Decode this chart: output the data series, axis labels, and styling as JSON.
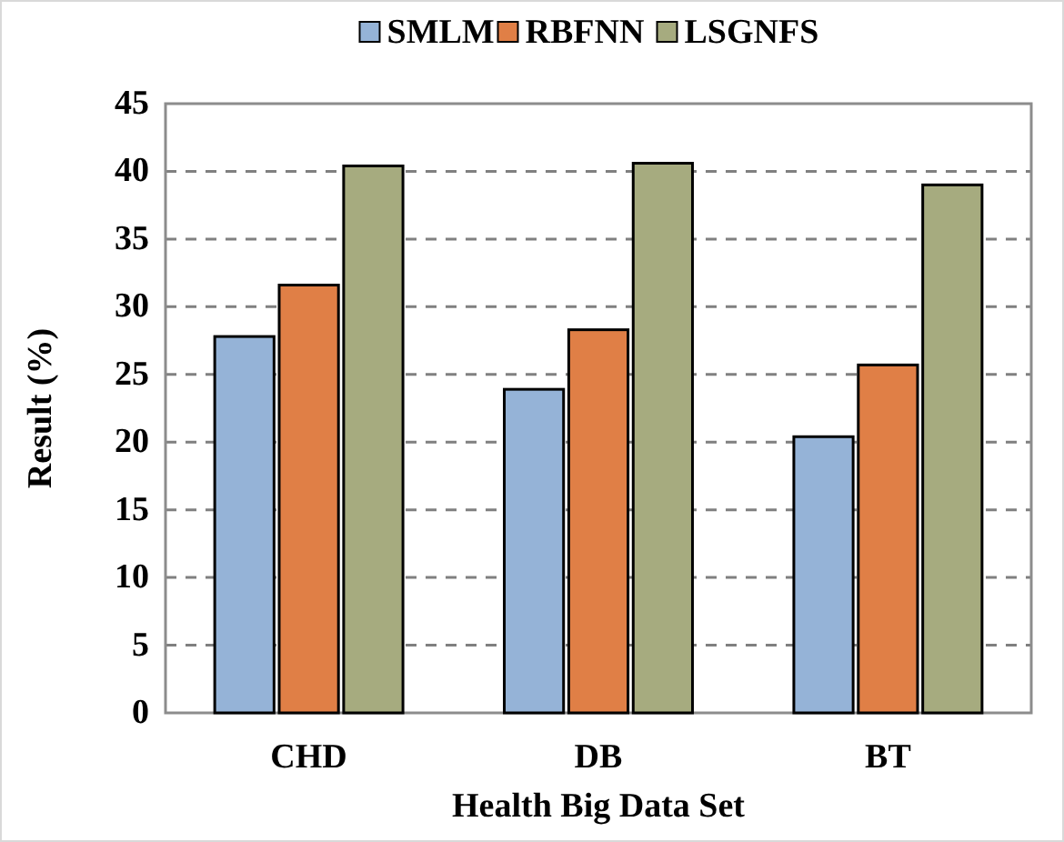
{
  "chart_data": {
    "type": "bar",
    "xlabel": "Health Big Data Set",
    "ylabel": "Result (%)",
    "categories": [
      "CHD",
      "DB",
      "BT"
    ],
    "series": [
      {
        "name": "SMLM",
        "color": "#95b3d7",
        "values": [
          27.8,
          23.9,
          20.4
        ]
      },
      {
        "name": "RBFNN",
        "color": "#e07f46",
        "values": [
          31.6,
          28.3,
          25.7
        ]
      },
      {
        "name": "LSGNFS",
        "color": "#a6ab7f",
        "values": [
          40.4,
          40.6,
          39.0
        ]
      }
    ],
    "ylim": [
      0,
      45
    ],
    "yticks": [
      0,
      5,
      10,
      15,
      20,
      25,
      30,
      35,
      40,
      45
    ],
    "grid": "y",
    "legend": "top"
  }
}
